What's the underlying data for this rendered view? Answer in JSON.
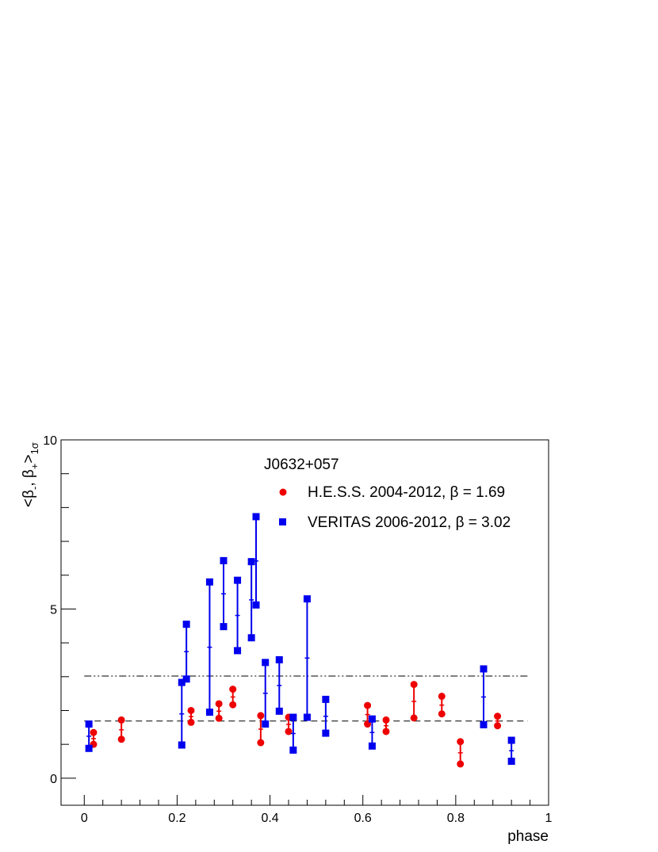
{
  "chart_data": {
    "type": "scatter",
    "title": "J0632+057",
    "xlabel": "phase",
    "ylabel": "<β-, β+>1σ",
    "ylabel_parts": {
      "main": "<β",
      "sub1": "-",
      "sep": ", β",
      "sub2": "+",
      "close": ">",
      "sub3": "1σ"
    },
    "xlim": [
      -0.05,
      1.0
    ],
    "ylim": [
      -0.8,
      10
    ],
    "xticks": [
      0,
      0.2,
      0.4,
      0.6,
      0.8,
      1
    ],
    "xtick_labels": [
      "0",
      "0.2",
      "0.4",
      "0.6",
      "0.8",
      "1"
    ],
    "yticks": [
      0,
      5,
      10
    ],
    "ytick_labels": [
      "0",
      "5",
      "10"
    ],
    "grid": false,
    "legend_position": "top-right",
    "reference_lines": [
      {
        "y": 1.69,
        "style": "dashed",
        "color": "#000000"
      },
      {
        "y": 3.02,
        "style": "dash-dot-dot",
        "color": "#000000"
      }
    ],
    "series": [
      {
        "name": "H.E.S.S. 2004-2012, β = 1.69",
        "marker": "circle",
        "color": "#ee0000",
        "points": [
          {
            "x": 0.02,
            "low": 1.0,
            "high": 1.35,
            "mid": 1.17
          },
          {
            "x": 0.08,
            "low": 1.15,
            "high": 1.72,
            "mid": 1.43
          },
          {
            "x": 0.23,
            "low": 1.65,
            "high": 2.0,
            "mid": 1.82
          },
          {
            "x": 0.29,
            "low": 1.77,
            "high": 2.2,
            "mid": 1.98
          },
          {
            "x": 0.32,
            "low": 2.17,
            "high": 2.63,
            "mid": 2.4
          },
          {
            "x": 0.38,
            "low": 1.05,
            "high": 1.85,
            "mid": 1.45
          },
          {
            "x": 0.44,
            "low": 1.38,
            "high": 1.8,
            "mid": 1.59
          },
          {
            "x": 0.61,
            "low": 1.6,
            "high": 2.15,
            "mid": 1.88
          },
          {
            "x": 0.65,
            "low": 1.38,
            "high": 1.72,
            "mid": 1.55
          },
          {
            "x": 0.71,
            "low": 1.78,
            "high": 2.77,
            "mid": 2.27
          },
          {
            "x": 0.77,
            "low": 1.9,
            "high": 2.42,
            "mid": 2.16
          },
          {
            "x": 0.81,
            "low": 0.42,
            "high": 1.08,
            "mid": 0.75
          },
          {
            "x": 0.89,
            "low": 1.55,
            "high": 1.83,
            "mid": 1.69
          }
        ]
      },
      {
        "name": "VERITAS 2006-2012, β = 3.02",
        "marker": "square",
        "color": "#0000ee",
        "points": [
          {
            "x": 0.01,
            "low": 0.88,
            "high": 1.6,
            "mid": 1.24
          },
          {
            "x": 0.21,
            "low": 0.98,
            "high": 2.83,
            "mid": 1.9
          },
          {
            "x": 0.22,
            "low": 2.93,
            "high": 4.55,
            "mid": 3.74
          },
          {
            "x": 0.27,
            "low": 1.95,
            "high": 5.8,
            "mid": 3.87
          },
          {
            "x": 0.3,
            "low": 4.48,
            "high": 6.43,
            "mid": 5.45
          },
          {
            "x": 0.33,
            "low": 3.77,
            "high": 5.85,
            "mid": 4.81
          },
          {
            "x": 0.36,
            "low": 4.15,
            "high": 6.4,
            "mid": 5.27
          },
          {
            "x": 0.37,
            "low": 5.12,
            "high": 7.73,
            "mid": 6.42
          },
          {
            "x": 0.39,
            "low": 1.6,
            "high": 3.42,
            "mid": 2.51
          },
          {
            "x": 0.42,
            "low": 1.98,
            "high": 3.5,
            "mid": 2.74
          },
          {
            "x": 0.45,
            "low": 0.83,
            "high": 1.8,
            "mid": 1.32
          },
          {
            "x": 0.48,
            "low": 1.8,
            "high": 5.3,
            "mid": 3.55
          },
          {
            "x": 0.52,
            "low": 1.33,
            "high": 2.33,
            "mid": 1.83
          },
          {
            "x": 0.62,
            "low": 0.95,
            "high": 1.75,
            "mid": 1.35
          },
          {
            "x": 0.86,
            "low": 1.58,
            "high": 3.23,
            "mid": 2.4
          },
          {
            "x": 0.92,
            "low": 0.5,
            "high": 1.12,
            "mid": 0.81
          }
        ]
      }
    ]
  }
}
